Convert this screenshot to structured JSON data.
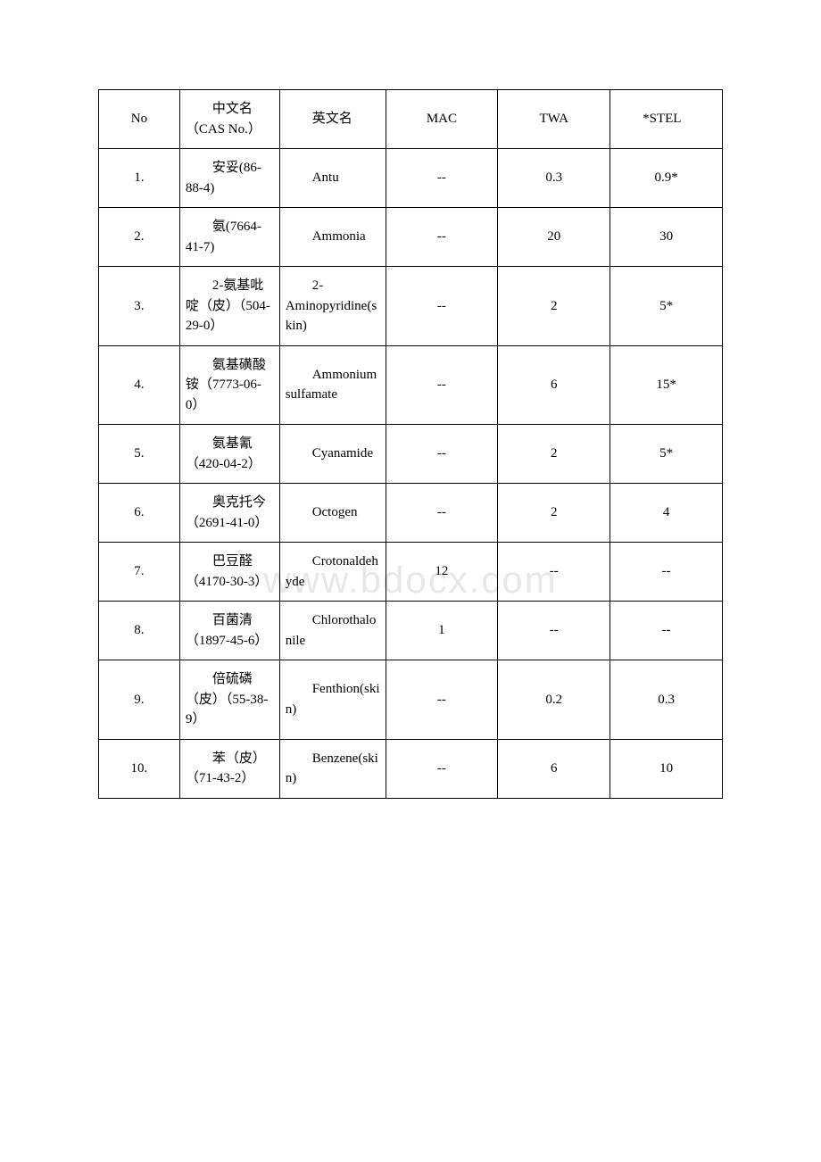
{
  "watermark": "www.bdocx.com",
  "table": {
    "columns": {
      "no": "No",
      "cn": "中文名（CAS No.）",
      "en": "英文名",
      "mac": "MAC",
      "twa": "TWA",
      "stel": "*STEL"
    },
    "rows": [
      {
        "no": "1.",
        "cn": "安妥(86-88-4)",
        "en": "Antu",
        "mac": "--",
        "twa": "0.3",
        "stel": "0.9*"
      },
      {
        "no": "2.",
        "cn": "氨(7664-41-7)",
        "en": "Ammonia",
        "mac": "--",
        "twa": "20",
        "stel": "30"
      },
      {
        "no": "3.",
        "cn": "2-氨基吡啶（皮）（504-29-0）",
        "en": "2-Aminopyridine(skin)",
        "mac": "--",
        "twa": "2",
        "stel": "5*"
      },
      {
        "no": "4.",
        "cn": "氨基磺酸铵（7773-06-0）",
        "en": "Ammonium sulfamate",
        "mac": "--",
        "twa": "6",
        "stel": "15*"
      },
      {
        "no": "5.",
        "cn": "氨基氰（420-04-2）",
        "en": "Cyanamide",
        "mac": "--",
        "twa": "2",
        "stel": "5*"
      },
      {
        "no": "6.",
        "cn": "奥克托今（2691-41-0）",
        "en": "Octogen",
        "mac": "--",
        "twa": "2",
        "stel": "4"
      },
      {
        "no": "7.",
        "cn": "巴豆醛（4170-30-3）",
        "en": "Crotonaldehyde",
        "mac": "12",
        "twa": "--",
        "stel": "--"
      },
      {
        "no": "8.",
        "cn": "百菌清（1897-45-6）",
        "en": "Chlorothalonile",
        "mac": "1",
        "twa": "--",
        "stel": "--"
      },
      {
        "no": "9.",
        "cn": "倍硫磷（皮）（55-38-9）",
        "en": "Fenthion(skin)",
        "mac": "--",
        "twa": "0.2",
        "stel": "0.3"
      },
      {
        "no": "10.",
        "cn": "苯（皮）（71-43-2）",
        "en": "Benzene(skin)",
        "mac": "--",
        "twa": "6",
        "stel": "10"
      }
    ]
  }
}
